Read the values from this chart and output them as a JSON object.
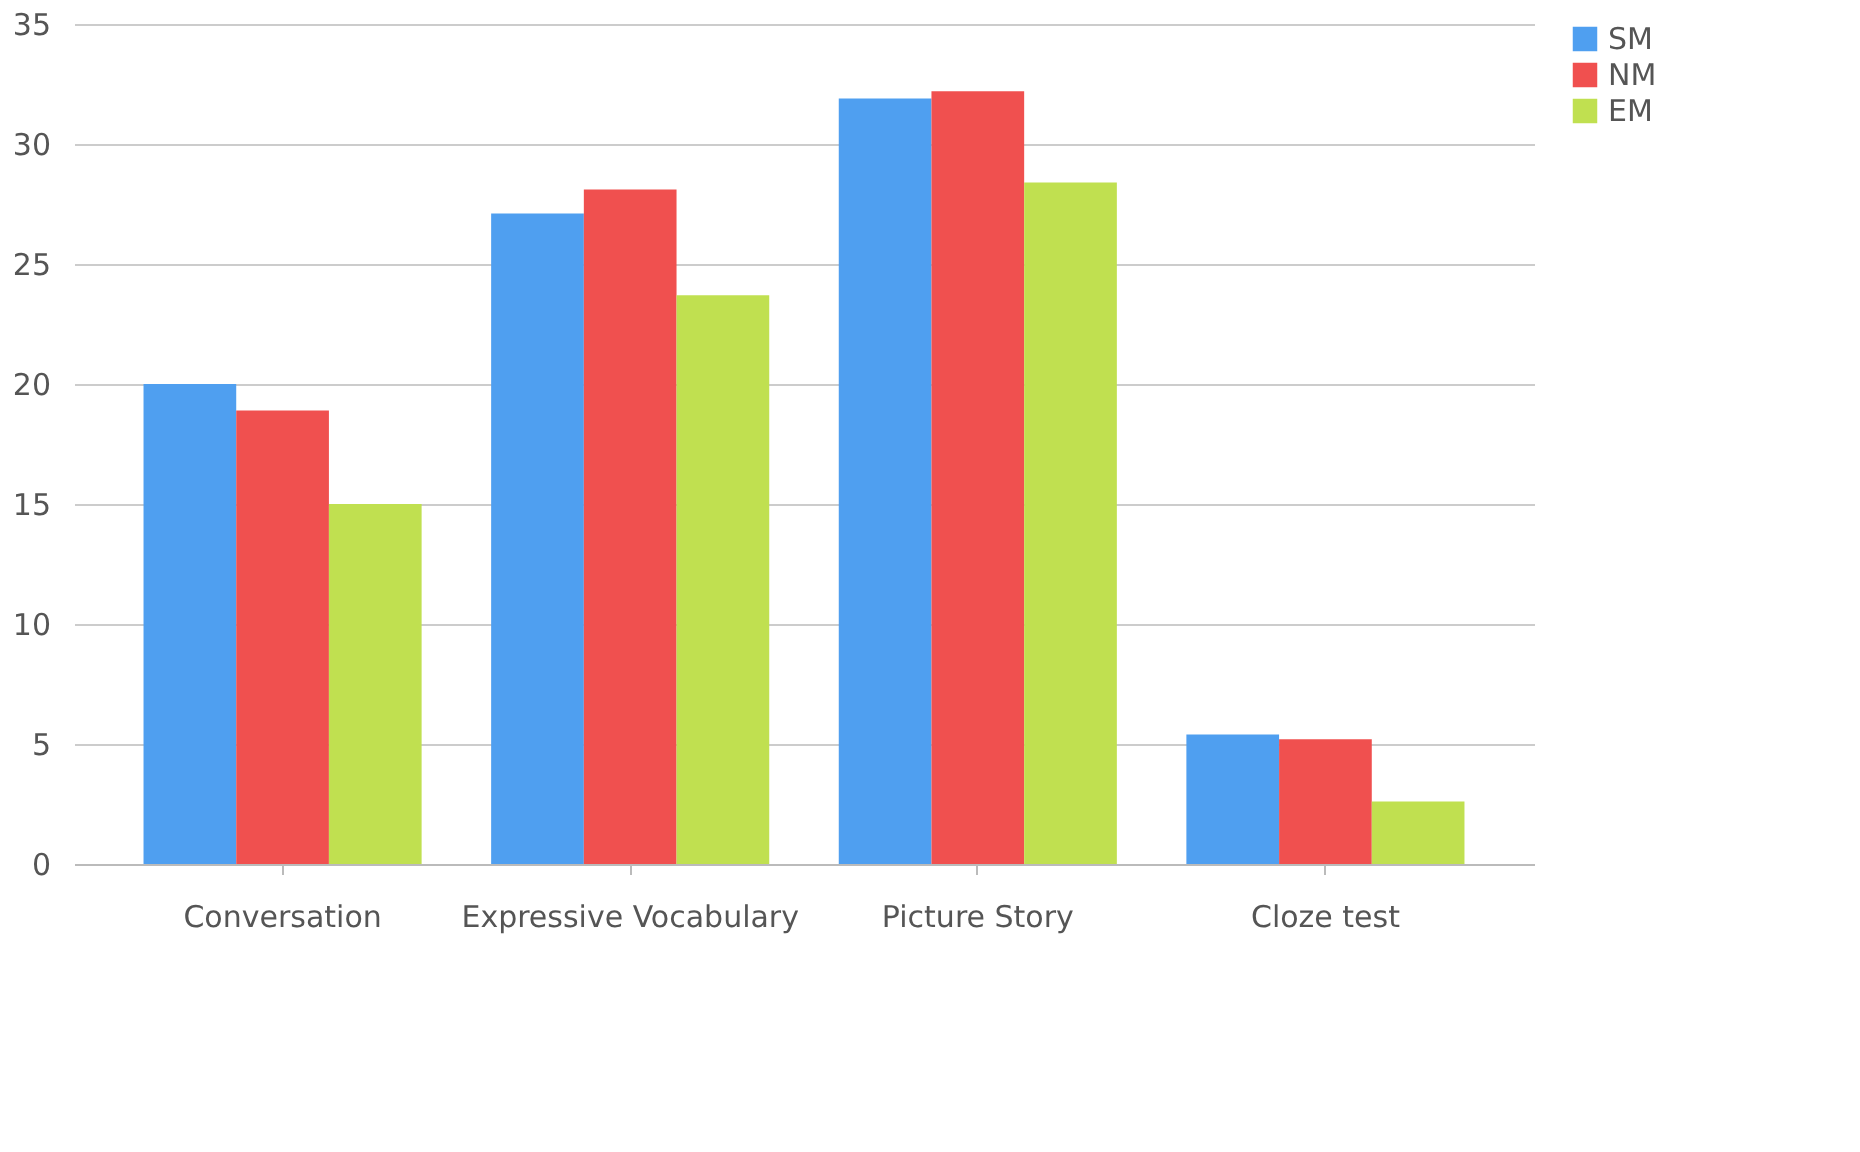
{
  "chart_data": {
    "type": "bar",
    "categories": [
      "Conversation",
      "Expressive Vocabulary",
      "Picture Story",
      "Cloze test"
    ],
    "series": [
      {
        "name": "SM",
        "color": "#4f9ff0",
        "values": [
          20,
          27.1,
          31.9,
          5.4
        ]
      },
      {
        "name": "NM",
        "color": "#f0504f",
        "values": [
          18.9,
          28.1,
          32.2,
          5.2
        ]
      },
      {
        "name": "EM",
        "color": "#c0e050",
        "values": [
          15,
          23.7,
          28.4,
          2.6
        ]
      }
    ],
    "ylim": [
      0,
      35
    ],
    "yticks": [
      0,
      5,
      10,
      15,
      20,
      25,
      30,
      35
    ],
    "grid": "y",
    "legend": "right"
  }
}
